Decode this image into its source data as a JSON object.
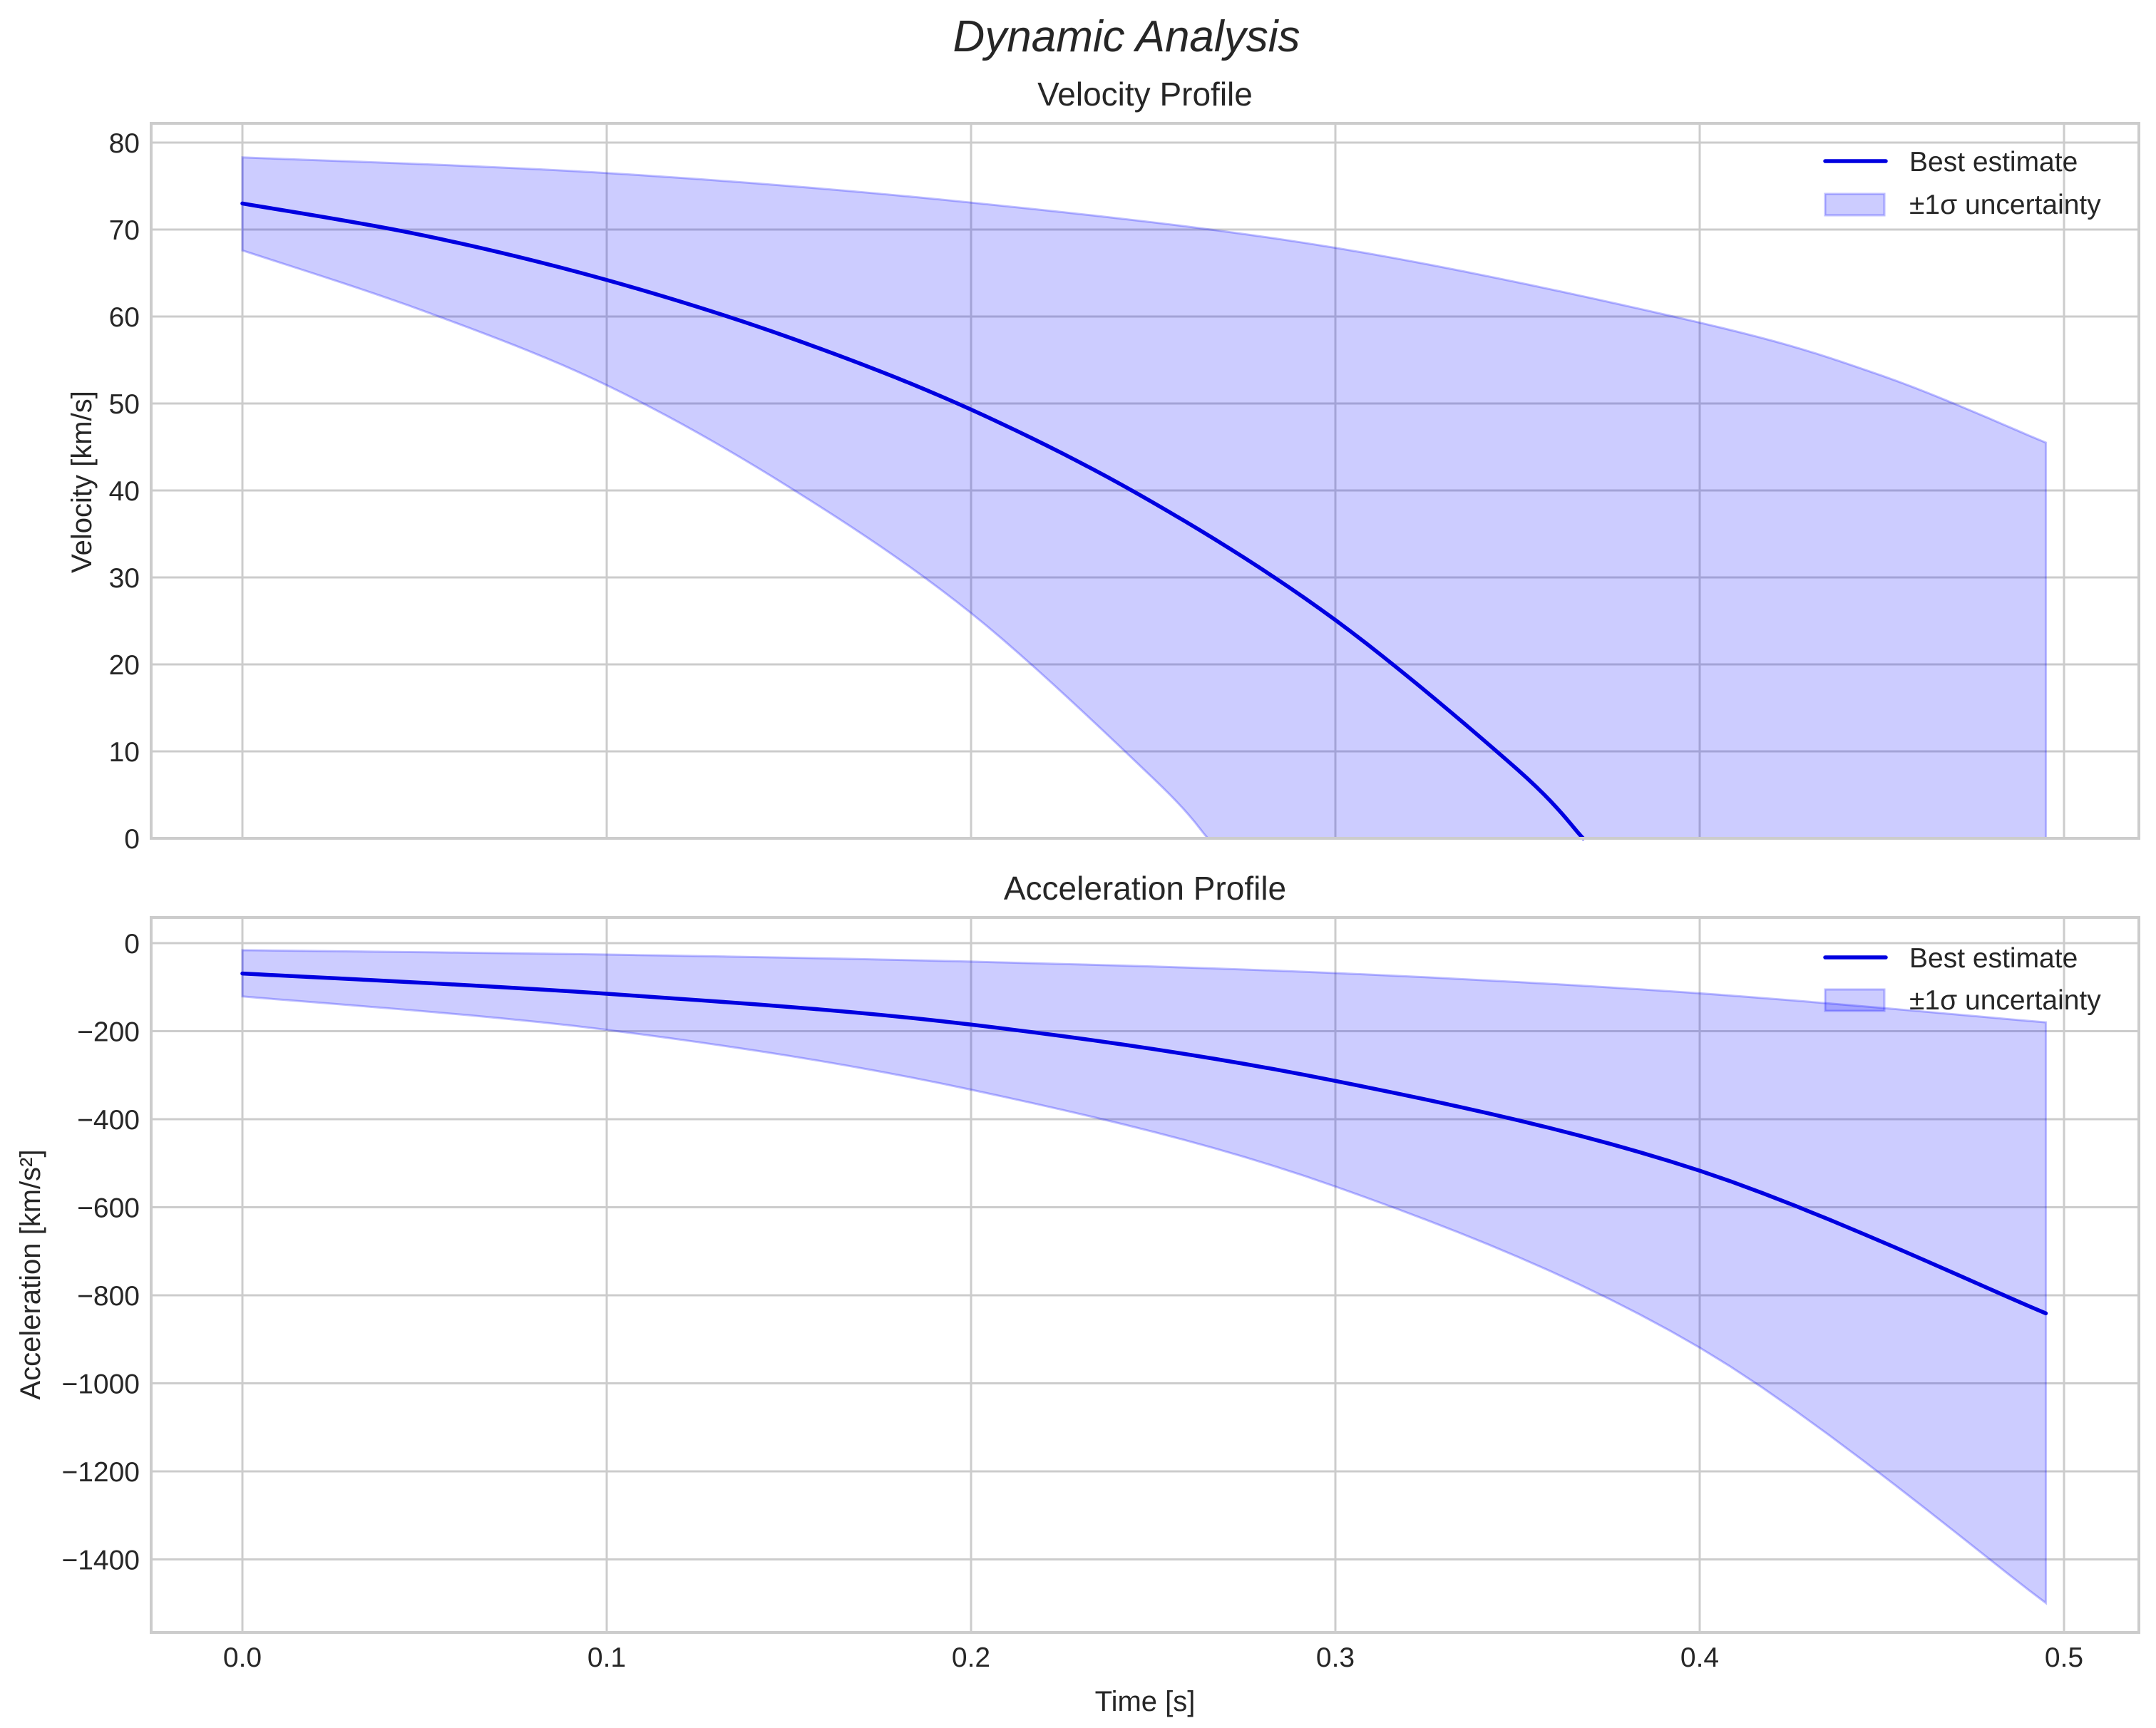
{
  "figure": {
    "title": "Dynamic Analysis",
    "xlabel": "Time [s]"
  },
  "panels": [
    {
      "title": "Velocity Profile",
      "ylabel": "Velocity [km/s]",
      "yticks": [
        "0",
        "10",
        "20",
        "30",
        "40",
        "50",
        "60",
        "70",
        "80"
      ],
      "xticks": [
        "0.0",
        "0.1",
        "0.2",
        "0.3",
        "0.4",
        "0.5"
      ],
      "legend": [
        "Best estimate",
        "±1σ uncertainty"
      ]
    },
    {
      "title": "Acceleration Profile",
      "ylabel": "Acceleration [km/s²]",
      "yticks": [
        "0",
        "−200",
        "−400",
        "−600",
        "−800",
        "−1000",
        "−1200",
        "−1400"
      ],
      "xticks": [
        "0.0",
        "0.1",
        "0.2",
        "0.3",
        "0.4",
        "0.5"
      ],
      "legend": [
        "Best estimate",
        "±1σ uncertainty"
      ]
    }
  ],
  "colors": {
    "line": "#0000e0",
    "band_fill": "rgba(0,0,255,0.2)",
    "grid": "#cccccc",
    "text": "#262626"
  },
  "chart_data": [
    {
      "type": "line",
      "title": "Velocity Profile",
      "xlabel": "Time [s]",
      "ylabel": "Velocity [km/s]",
      "xlim": [
        -0.025,
        0.52
      ],
      "ylim": [
        0,
        82
      ],
      "grid": true,
      "legend_position": "upper right",
      "x": [
        0.0,
        0.05,
        0.1,
        0.15,
        0.2,
        0.25,
        0.3,
        0.35,
        0.368
      ],
      "series": [
        {
          "name": "Best estimate",
          "x": [
            0.0,
            0.05,
            0.1,
            0.15,
            0.2,
            0.25,
            0.3,
            0.35,
            0.368
          ],
          "values": [
            73.0,
            69.3,
            64.2,
            57.6,
            49.3,
            38.6,
            25.1,
            7.9,
            0.0
          ]
        },
        {
          "name": "±1σ uncertainty (upper)",
          "x": [
            0.0,
            0.1,
            0.2,
            0.3,
            0.4,
            0.45,
            0.495
          ],
          "values": [
            78.3,
            76.5,
            73.1,
            67.9,
            59.3,
            53.2,
            45.5
          ]
        },
        {
          "name": "±1σ uncertainty (lower)",
          "x": [
            0.0,
            0.05,
            0.1,
            0.15,
            0.2,
            0.25,
            0.265
          ],
          "values": [
            67.6,
            60.6,
            52.1,
            40.4,
            25.9,
            6.9,
            0.0
          ]
        }
      ]
    },
    {
      "type": "line",
      "title": "Acceleration Profile",
      "xlabel": "Time [s]",
      "ylabel": "Acceleration [km/s²]",
      "xlim": [
        -0.025,
        0.52
      ],
      "ylim": [
        -1560,
        60
      ],
      "grid": true,
      "legend_position": "upper right",
      "x": [
        0.0,
        0.1,
        0.2,
        0.3,
        0.4,
        0.495
      ],
      "series": [
        {
          "name": "Best estimate",
          "values": [
            -69,
            -115,
            -185,
            -313,
            -517,
            -841
          ]
        },
        {
          "name": "±1σ uncertainty (upper)",
          "values": [
            -16,
            -26,
            -42,
            -68,
            -114,
            -180
          ]
        },
        {
          "name": "±1σ uncertainty (lower)",
          "values": [
            -121,
            -197,
            -333,
            -553,
            -919,
            -1499
          ]
        }
      ]
    }
  ]
}
